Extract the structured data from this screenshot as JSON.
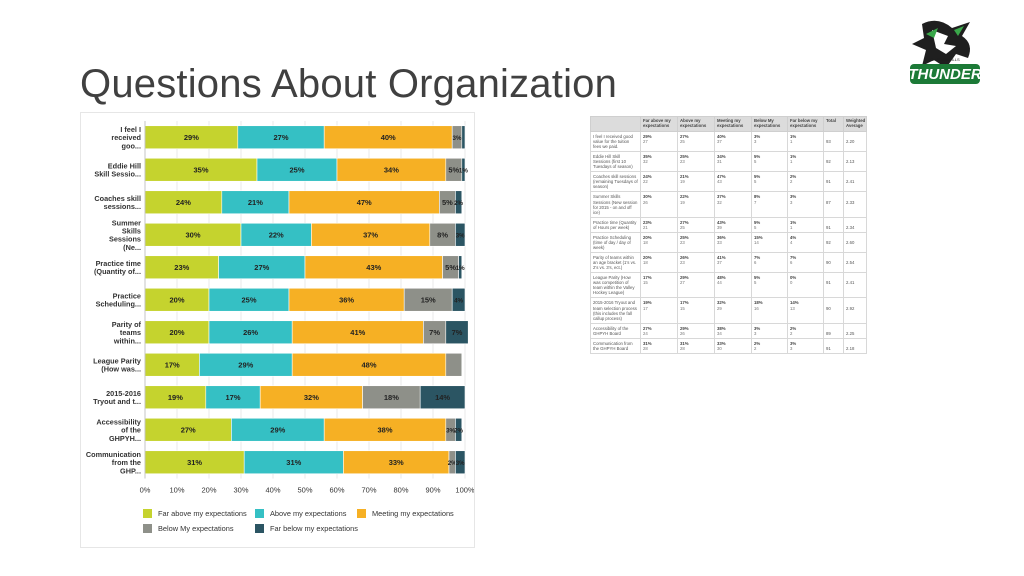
{
  "page": {
    "title": "Questions About Organization"
  },
  "colors": {
    "far_above": "#c5d32e",
    "above": "#35c0c4",
    "meeting": "#f6b024",
    "below": "#8e9089",
    "far_below": "#2b5563",
    "grid": "#e3e3e3",
    "title": "#404040"
  },
  "chart_data": {
    "type": "bar",
    "orientation": "horizontal",
    "stacked": true,
    "categories": [
      "I feel I received goo...",
      "Eddie Hill Skill Sessio...",
      "Coaches skill sessions...",
      "Summer Skills Sessions (Ne...",
      "Practice time (Quantity of...",
      "Practice Scheduling...",
      "Parity of teams within...",
      "League Parity (How was...",
      "2015-2016 Tryout and t...",
      "Accessibility of the GHPYH...",
      "Communication from the GHP..."
    ],
    "category_lines": [
      [
        "I feel I",
        "received",
        "goo..."
      ],
      [
        "Eddie Hill",
        "Skill Sessio..."
      ],
      [
        "Coaches skill",
        "sessions..."
      ],
      [
        "Summer",
        "Skills",
        "Sessions",
        "(Ne..."
      ],
      [
        "Practice time",
        "(Quantity of..."
      ],
      [
        "Practice",
        "Scheduling..."
      ],
      [
        "Parity of",
        "teams",
        "within..."
      ],
      [
        "League Parity",
        "(How was..."
      ],
      [
        "2015-2016",
        "Tryout and t..."
      ],
      [
        "Accessibility",
        "of the",
        "GHPYH..."
      ],
      [
        "Communication",
        "from the",
        "GHP..."
      ]
    ],
    "series": [
      {
        "name": "Far above my expectations",
        "color_key": "far_above",
        "values": [
          29,
          35,
          24,
          30,
          23,
          20,
          20,
          17,
          19,
          27,
          31
        ],
        "labels": [
          "29%",
          "35%",
          "24%",
          "30%",
          "23%",
          "20%",
          "20%",
          "17%",
          "19%",
          "27%",
          "31%"
        ]
      },
      {
        "name": "Above my expectations",
        "color_key": "above",
        "values": [
          27,
          25,
          21,
          22,
          27,
          25,
          26,
          29,
          17,
          29,
          31
        ],
        "labels": [
          "27%",
          "25%",
          "21%",
          "22%",
          "27%",
          "25%",
          "26%",
          "29%",
          "17%",
          "29%",
          "31%"
        ]
      },
      {
        "name": "Meeting my expectations",
        "color_key": "meeting",
        "values": [
          40,
          34,
          47,
          37,
          43,
          36,
          41,
          48,
          32,
          38,
          33
        ],
        "labels": [
          "40%",
          "34%",
          "47%",
          "37%",
          "43%",
          "36%",
          "41%",
          "48%",
          "32%",
          "38%",
          "33%"
        ]
      },
      {
        "name": "Below My expectations",
        "color_key": "below",
        "values": [
          3,
          5,
          5,
          8,
          5,
          15,
          7,
          5,
          18,
          3,
          2
        ],
        "labels": [
          "3%",
          "5%",
          "5%",
          "8%",
          "5%",
          "15%",
          "7%",
          "",
          "18%",
          "3%",
          "2%"
        ]
      },
      {
        "name": "Far below my expectations",
        "color_key": "far_below",
        "values": [
          1,
          1,
          2,
          3,
          1,
          4,
          7,
          0,
          14,
          2,
          3
        ],
        "labels": [
          "",
          "1%",
          "2%",
          "3%",
          "1%",
          "4%",
          "7%",
          "",
          "14%",
          "2%",
          "3%"
        ]
      }
    ],
    "xlabel": "",
    "ylabel": "",
    "xlim": [
      0,
      100
    ],
    "x_ticks": [
      "0%",
      "10%",
      "20%",
      "30%",
      "40%",
      "50%",
      "60%",
      "70%",
      "80%",
      "90%",
      "100%"
    ],
    "legend": [
      "Far above my expectations",
      "Above my expectations",
      "Meeting my expectations",
      "Below My expectations",
      "Far below my expectations"
    ],
    "legend_position": "bottom"
  },
  "table": {
    "headers": [
      "",
      "Far above my expectations",
      "Above my expectations",
      "Meeting my expectations",
      "Below My expectations",
      "Far below my expectations",
      "Total",
      "Weighted Average"
    ],
    "rows": [
      {
        "question": "I feel I received good value for the tuition fees we paid.",
        "cells": [
          [
            "29%",
            "27"
          ],
          [
            "27%",
            "25"
          ],
          [
            "40%",
            "37"
          ],
          [
            "3%",
            "3"
          ],
          [
            "1%",
            "1"
          ]
        ],
        "total": "93",
        "avg": "2.20"
      },
      {
        "question": "Eddie Hill Skill Sessions (first 10 Tuesdays of season)",
        "cells": [
          [
            "35%",
            "32"
          ],
          [
            "25%",
            "23"
          ],
          [
            "34%",
            "31"
          ],
          [
            "5%",
            "5"
          ],
          [
            "1%",
            "1"
          ]
        ],
        "total": "92",
        "avg": "2.13"
      },
      {
        "question": "Coaches skill sessions (remaining Tuesdays of season)",
        "cells": [
          [
            "24%",
            "22"
          ],
          [
            "21%",
            "19"
          ],
          [
            "47%",
            "43"
          ],
          [
            "5%",
            "5"
          ],
          [
            "2%",
            "2"
          ]
        ],
        "total": "91",
        "avg": "2.41"
      },
      {
        "question": "Summer Skills Sessions (New session for 2015 - on and off ice)",
        "cells": [
          [
            "30%",
            "26"
          ],
          [
            "22%",
            "19"
          ],
          [
            "37%",
            "32"
          ],
          [
            "8%",
            "7"
          ],
          [
            "3%",
            "3"
          ]
        ],
        "total": "87",
        "avg": "2.33"
      },
      {
        "question": "Practice time (Quantity of Hours per week)",
        "cells": [
          [
            "23%",
            "21"
          ],
          [
            "27%",
            "25"
          ],
          [
            "43%",
            "39"
          ],
          [
            "5%",
            "5"
          ],
          [
            "1%",
            "1"
          ]
        ],
        "total": "91",
        "avg": "2.34"
      },
      {
        "question": "Practice Scheduling (time of day / day of week)",
        "cells": [
          [
            "20%",
            "18"
          ],
          [
            "25%",
            "23"
          ],
          [
            "36%",
            "33"
          ],
          [
            "15%",
            "14"
          ],
          [
            "4%",
            "4"
          ]
        ],
        "total": "92",
        "avg": "2.60"
      },
      {
        "question": "Parity of teams within an age bracket (1's vs. 2's vs. 3's, ect.)",
        "cells": [
          [
            "20%",
            "18"
          ],
          [
            "26%",
            "23"
          ],
          [
            "41%",
            "37"
          ],
          [
            "7%",
            "6"
          ],
          [
            "7%",
            "6"
          ]
        ],
        "total": "90",
        "avg": "2.54"
      },
      {
        "question": "League Parity (How was competition of team within the Valley Hockey League)",
        "cells": [
          [
            "17%",
            "15"
          ],
          [
            "29%",
            "27"
          ],
          [
            "48%",
            "44"
          ],
          [
            "5%",
            "5"
          ],
          [
            "0%",
            "0"
          ]
        ],
        "total": "91",
        "avg": "2.41"
      },
      {
        "question": "2015-2016 Tryout and team selection process (this includes the fall callup process)",
        "cells": [
          [
            "19%",
            "17"
          ],
          [
            "17%",
            "15"
          ],
          [
            "32%",
            "29"
          ],
          [
            "18%",
            "16"
          ],
          [
            "14%",
            "13"
          ]
        ],
        "total": "90",
        "avg": "2.92"
      },
      {
        "question": "Accessibility of the GHPYH Board",
        "cells": [
          [
            "27%",
            "24"
          ],
          [
            "29%",
            "26"
          ],
          [
            "38%",
            "34"
          ],
          [
            "3%",
            "3"
          ],
          [
            "2%",
            "2"
          ]
        ],
        "total": "89",
        "avg": "2.25"
      },
      {
        "question": "Communication from the GHPYH Board",
        "cells": [
          [
            "31%",
            "28"
          ],
          [
            "31%",
            "28"
          ],
          [
            "33%",
            "30"
          ],
          [
            "2%",
            "2"
          ],
          [
            "3%",
            "3"
          ]
        ],
        "total": "91",
        "avg": "2.18"
      }
    ]
  },
  "logo": {
    "text": "THUNDER",
    "small_text": "GARDEN HILLS"
  }
}
